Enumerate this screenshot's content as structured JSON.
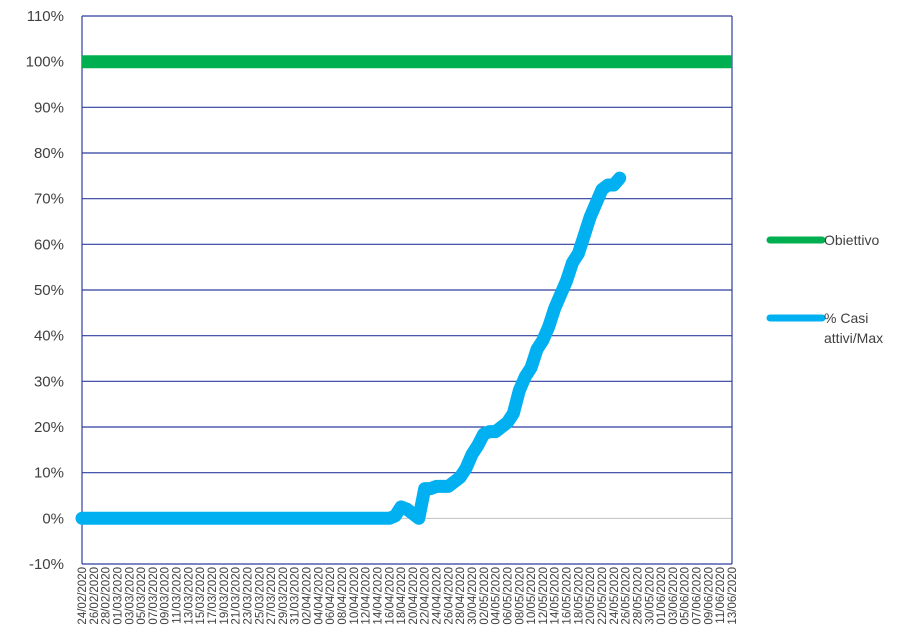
{
  "chart_data": {
    "type": "line",
    "title": "",
    "xlabel": "",
    "ylabel": "",
    "ylim": [
      -0.1,
      1.1
    ],
    "yticks": [
      "110%",
      "100%",
      "90%",
      "80%",
      "70%",
      "60%",
      "50%",
      "40%",
      "30%",
      "20%",
      "10%",
      "0%",
      "-10%"
    ],
    "x_start": "24/02/2020",
    "x_end": "13/06/2020",
    "x_ticks": [
      "24/02/2020",
      "26/02/2020",
      "28/02/2020",
      "01/03/2020",
      "03/03/2020",
      "05/03/2020",
      "07/03/2020",
      "09/03/2020",
      "11/03/2020",
      "13/03/2020",
      "15/03/2020",
      "17/03/2020",
      "19/03/2020",
      "21/03/2020",
      "23/03/2020",
      "25/03/2020",
      "27/03/2020",
      "29/03/2020",
      "31/03/2020",
      "02/04/2020",
      "04/04/2020",
      "06/04/2020",
      "08/04/2020",
      "10/04/2020",
      "12/04/2020",
      "14/04/2020",
      "16/04/2020",
      "18/04/2020",
      "20/04/2020",
      "22/04/2020",
      "24/04/2020",
      "26/04/2020",
      "28/04/2020",
      "30/04/2020",
      "02/05/2020",
      "04/05/2020",
      "06/05/2020",
      "08/05/2020",
      "10/05/2020",
      "12/05/2020",
      "14/05/2020",
      "16/05/2020",
      "18/05/2020",
      "20/05/2020",
      "22/05/2020",
      "24/05/2020",
      "26/05/2020",
      "28/05/2020",
      "30/05/2020",
      "01/06/2020",
      "03/06/2020",
      "05/06/2020",
      "07/06/2020",
      "09/06/2020",
      "11/06/2020",
      "13/06/2020"
    ],
    "grid": true,
    "legend_position": "right",
    "series": [
      {
        "name": "Obiettivo",
        "color": "#00B050",
        "points": [
          [
            "24/02/2020",
            1.0
          ],
          [
            "13/06/2020",
            1.0
          ]
        ]
      },
      {
        "name": "% Casi attivi/Max",
        "color": "#00B0F0",
        "points": [
          [
            "24/02/2020",
            0.0
          ],
          [
            "16/04/2020",
            0.0
          ],
          [
            "17/04/2020",
            0.005
          ],
          [
            "18/04/2020",
            0.025
          ],
          [
            "19/04/2020",
            0.02
          ],
          [
            "20/04/2020",
            0.01
          ],
          [
            "21/04/2020",
            0.0
          ],
          [
            "22/04/2020",
            0.065
          ],
          [
            "23/04/2020",
            0.065
          ],
          [
            "24/04/2020",
            0.07
          ],
          [
            "26/04/2020",
            0.07
          ],
          [
            "28/04/2020",
            0.09
          ],
          [
            "29/04/2020",
            0.11
          ],
          [
            "30/04/2020",
            0.14
          ],
          [
            "01/05/2020",
            0.16
          ],
          [
            "02/05/2020",
            0.185
          ],
          [
            "03/05/2020",
            0.19
          ],
          [
            "04/05/2020",
            0.19
          ],
          [
            "05/05/2020",
            0.2
          ],
          [
            "06/05/2020",
            0.21
          ],
          [
            "07/05/2020",
            0.23
          ],
          [
            "08/05/2020",
            0.28
          ],
          [
            "09/05/2020",
            0.31
          ],
          [
            "10/05/2020",
            0.33
          ],
          [
            "11/05/2020",
            0.37
          ],
          [
            "12/05/2020",
            0.39
          ],
          [
            "13/05/2020",
            0.42
          ],
          [
            "14/05/2020",
            0.46
          ],
          [
            "15/05/2020",
            0.49
          ],
          [
            "16/05/2020",
            0.52
          ],
          [
            "17/05/2020",
            0.56
          ],
          [
            "18/05/2020",
            0.58
          ],
          [
            "19/05/2020",
            0.62
          ],
          [
            "20/05/2020",
            0.66
          ],
          [
            "21/05/2020",
            0.69
          ],
          [
            "22/05/2020",
            0.72
          ],
          [
            "23/05/2020",
            0.73
          ],
          [
            "24/05/2020",
            0.73
          ],
          [
            "25/05/2020",
            0.745
          ]
        ]
      }
    ],
    "legend": [
      {
        "lines": [
          "Obiettivo"
        ]
      },
      {
        "lines": [
          "% Casi",
          "attivi/Max"
        ]
      }
    ]
  }
}
